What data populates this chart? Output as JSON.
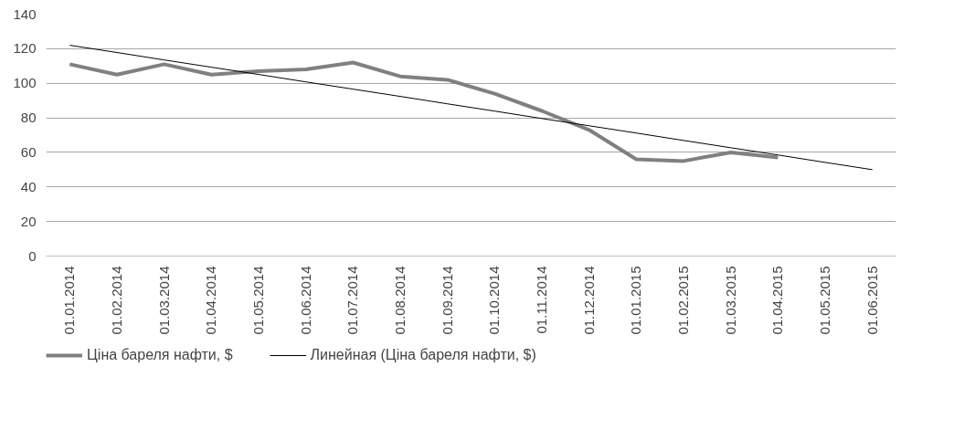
{
  "chart_data": {
    "type": "line",
    "categories": [
      "01.01.2014",
      "01.02.2014",
      "01.03.2014",
      "01.04.2014",
      "01.05.2014",
      "01.06.2014",
      "01.07.2014",
      "01.08.2014",
      "01.09.2014",
      "01.10.2014",
      "01.11.2014",
      "01.12.2014",
      "01.01.2015",
      "01.02.2015",
      "01.03.2015",
      "01.04.2015",
      "01.05.2015",
      "01.06.2015"
    ],
    "series": [
      {
        "name": "Ціна бареля нафти, $",
        "color": "#808080",
        "values": [
          111,
          105,
          111,
          105,
          107,
          108,
          112,
          104,
          102,
          94,
          84,
          73,
          56,
          55,
          60,
          57,
          null,
          null
        ]
      },
      {
        "name": "Линейная (Ціна бареля нафти, $)",
        "color": "#000000",
        "values": [
          122,
          117.8,
          113.5,
          109.3,
          105.1,
          100.8,
          96.6,
          92.4,
          88.1,
          83.9,
          79.6,
          75.4,
          71.2,
          66.9,
          62.7,
          58.5,
          54.2,
          50
        ]
      }
    ],
    "ylim": [
      0,
      140
    ],
    "yticks": [
      0,
      20,
      40,
      60,
      80,
      100,
      120,
      140
    ],
    "grid": "y",
    "legend": "bottom"
  }
}
